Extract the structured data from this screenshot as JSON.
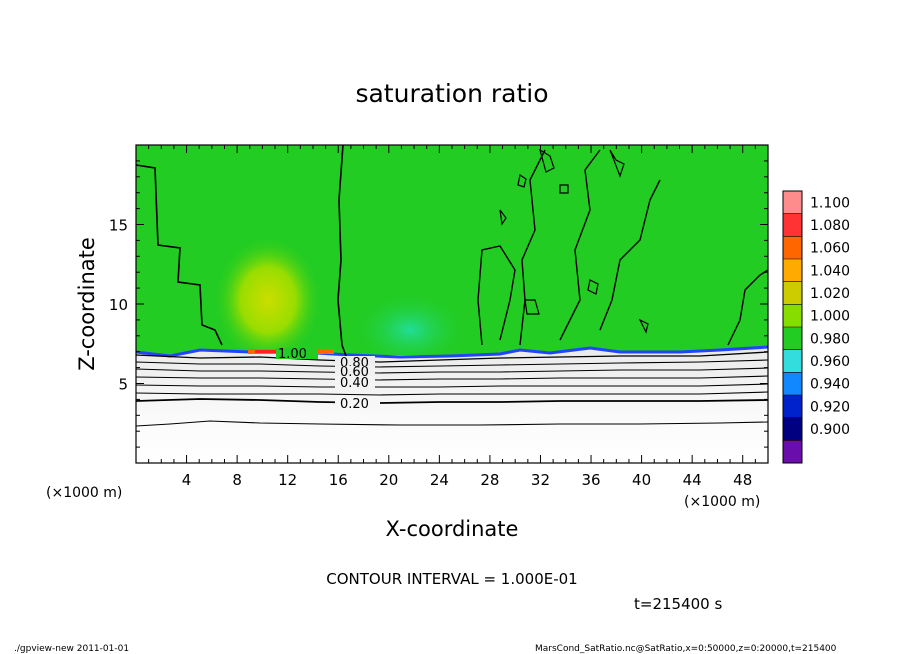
{
  "chart_data": {
    "type": "heatmap",
    "title": "saturation ratio",
    "xlabel": "X-coordinate",
    "ylabel": "Z-coordinate",
    "x_unit_left": "(×1000 m)",
    "x_unit_right": "(×1000 m)",
    "xlim": [
      0,
      50
    ],
    "ylim": [
      0,
      20
    ],
    "x_ticks": [
      "4",
      "8",
      "12",
      "16",
      "20",
      "24",
      "28",
      "32",
      "36",
      "40",
      "44",
      "48"
    ],
    "y_ticks": [
      "5",
      "10",
      "15"
    ],
    "x_tick_values": [
      4,
      8,
      12,
      16,
      20,
      24,
      28,
      32,
      36,
      40,
      44,
      48
    ],
    "y_tick_values": [
      5,
      10,
      15
    ],
    "colorbar": {
      "levels": [
        "1.100",
        "1.080",
        "1.060",
        "1.040",
        "1.020",
        "1.000",
        "0.980",
        "0.960",
        "0.940",
        "0.920",
        "0.900"
      ],
      "colors": [
        "#ff8c8c",
        "#ff3333",
        "#ff6600",
        "#ffaa00",
        "#cccc00",
        "#88dd00",
        "#22cc22",
        "#33dddd",
        "#1188ff",
        "#0022cc",
        "#000080",
        "#6a0dad"
      ]
    },
    "contour_labels": [
      "1.00",
      "0.80",
      "0.60",
      "0.40",
      "0.20"
    ],
    "contour_interval": "CONTOUR INTERVAL = 1.000E-01",
    "time_label": "t=215400 s"
  },
  "footer": {
    "left": "./gpview-new  2011-01-01",
    "right": "MarsCond_SatRatio.nc@SatRatio,x=0:50000,z=0:20000,t=215400"
  }
}
